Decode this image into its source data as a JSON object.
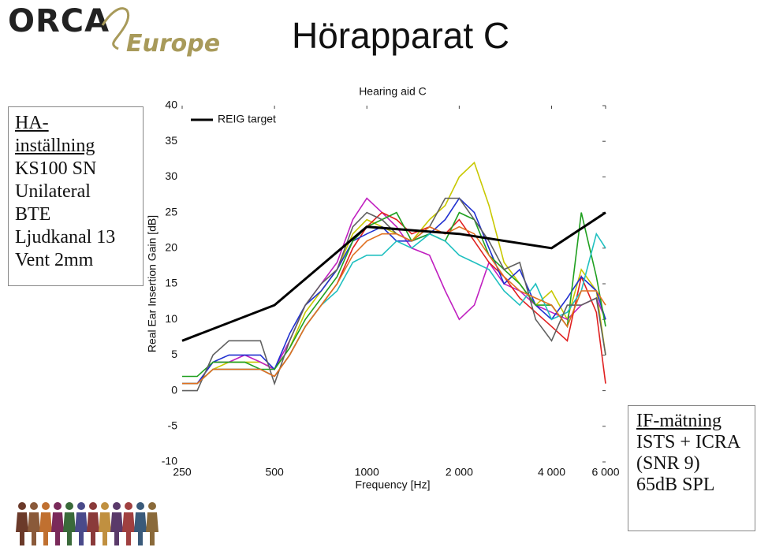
{
  "header": {
    "logo": "ORCA",
    "logo_sub": "Europe",
    "title": "Hörapparat C"
  },
  "left_note": {
    "heading": "HA-inställning",
    "lines": [
      "KS100 SN",
      "Unilateral",
      "BTE",
      "Ljudkanal 13",
      "Vent 2mm"
    ]
  },
  "right_note": {
    "heading": "IF-mätning",
    "lines": [
      "ISTS + ICRA",
      "(SNR 9)",
      "65dB SPL"
    ]
  },
  "chart_data": {
    "type": "line",
    "title": "Hearing aid C",
    "x_label": "Frequency [Hz]",
    "y_label": "Real Ear Insertion Gain [dB]",
    "log_x": true,
    "grid": false,
    "legend": "upper-left",
    "xlim": [
      250,
      6000
    ],
    "ylim": [
      -10,
      40
    ],
    "xticks": [
      250,
      500,
      1000,
      {
        "value": 2000,
        "label": "2 000"
      },
      {
        "value": 4000,
        "label": "4 000"
      },
      {
        "value": 6000,
        "label": "6 000"
      }
    ],
    "yticks": [
      -10,
      -5,
      0,
      5,
      10,
      15,
      20,
      25,
      30,
      35,
      40
    ],
    "x": [
      250,
      280,
      315,
      355,
      400,
      450,
      500,
      560,
      630,
      710,
      800,
      900,
      1000,
      1120,
      1250,
      1400,
      1600,
      1800,
      2000,
      2240,
      2500,
      2800,
      3150,
      3550,
      4000,
      4500,
      5000,
      5600,
      6000
    ],
    "series": [
      {
        "name": "REIG target",
        "color": "#000000",
        "x": [
          250,
          500,
          1000,
          2000,
          4000,
          6000
        ],
        "values": [
          7,
          12,
          23,
          22,
          20,
          25
        ]
      },
      {
        "color": "#c8c800",
        "values": [
          1,
          1,
          3,
          4,
          4,
          4,
          3,
          6,
          11,
          14,
          17,
          22,
          24,
          23,
          22,
          21,
          24,
          26,
          30,
          32,
          26,
          18,
          15,
          12,
          14,
          10,
          17,
          14,
          5
        ]
      },
      {
        "color": "#c020c0",
        "values": [
          1,
          1,
          4,
          4,
          5,
          4,
          3,
          7,
          12,
          15,
          18,
          24,
          27,
          25,
          23,
          20,
          19,
          14,
          10,
          12,
          18,
          15,
          14,
          12,
          11,
          10,
          12,
          13,
          10
        ]
      },
      {
        "color": "#e02020",
        "values": [
          1,
          1,
          3,
          3,
          3,
          3,
          2,
          5,
          9,
          12,
          15,
          20,
          23,
          25,
          24,
          22,
          23,
          22,
          24,
          21,
          18,
          16,
          13,
          11,
          9,
          7,
          16,
          11,
          1
        ]
      },
      {
        "color": "#2030d0",
        "values": [
          1,
          1,
          4,
          5,
          5,
          5,
          3,
          8,
          12,
          14,
          17,
          21,
          22,
          23,
          21,
          21,
          22,
          24,
          27,
          25,
          20,
          15,
          17,
          12,
          10,
          13,
          16,
          14,
          10
        ]
      },
      {
        "color": "#20a020",
        "values": [
          2,
          2,
          4,
          4,
          4,
          3,
          3,
          6,
          10,
          13,
          16,
          21,
          23,
          24,
          25,
          21,
          22,
          21,
          25,
          24,
          19,
          17,
          15,
          12,
          12,
          9,
          25,
          16,
          9
        ]
      },
      {
        "color": "#20c0c0",
        "values": [
          1,
          1,
          3,
          3,
          3,
          3,
          2,
          5,
          9,
          12,
          14,
          18,
          19,
          19,
          21,
          20,
          22,
          21,
          19,
          18,
          17,
          14,
          12,
          15,
          10,
          11,
          14,
          22,
          20
        ]
      },
      {
        "color": "#606060",
        "values": [
          0,
          0,
          5,
          7,
          7,
          7,
          1,
          7,
          12,
          15,
          17,
          23,
          25,
          24,
          22,
          21,
          23,
          27,
          27,
          24,
          21,
          17,
          18,
          10,
          7,
          12,
          12,
          13,
          5
        ]
      },
      {
        "color": "#e07020",
        "values": [
          1,
          1,
          3,
          3,
          3,
          3,
          2,
          5,
          9,
          12,
          15,
          19,
          21,
          22,
          22,
          21,
          23,
          22,
          23,
          22,
          19,
          16,
          14,
          13,
          12,
          9,
          14,
          14,
          12
        ]
      }
    ]
  }
}
